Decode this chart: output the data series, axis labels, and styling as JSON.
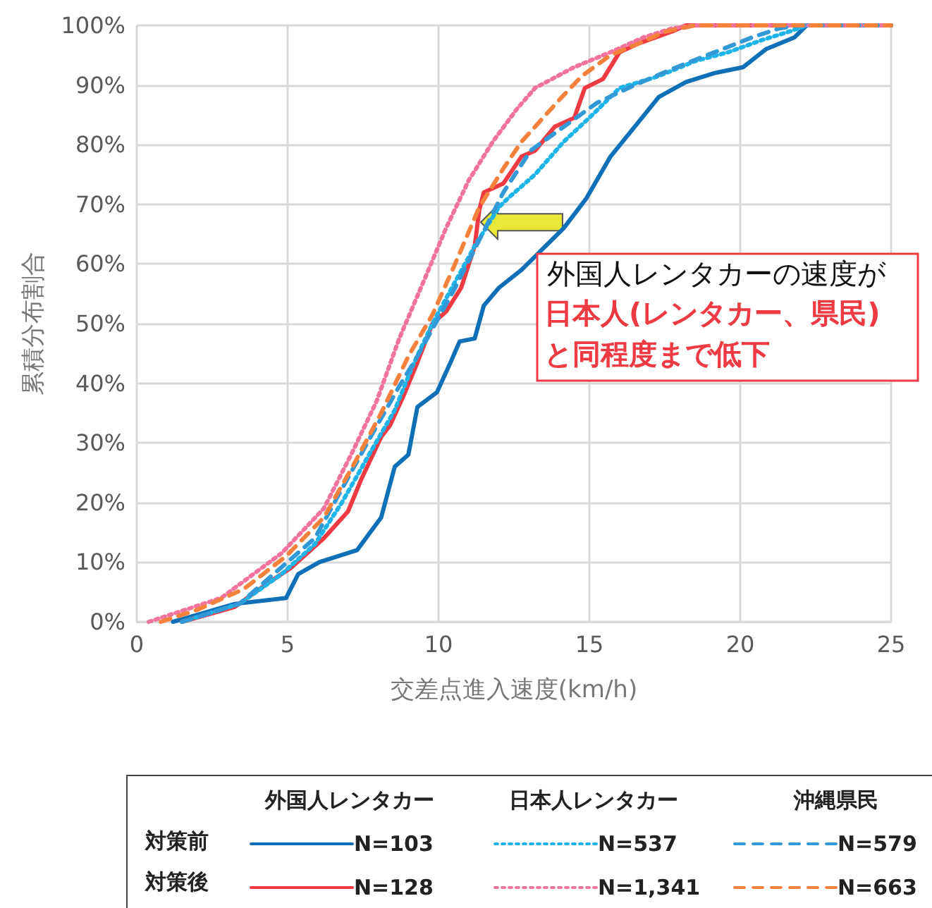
{
  "chart_data": {
    "type": "line",
    "xlabel": "交差点進入速度(km/h)",
    "ylabel": "累積分布割合",
    "xlim": [
      0,
      25
    ],
    "xticks": [
      0,
      5,
      10,
      15,
      20,
      25
    ],
    "ylim": [
      0,
      100
    ],
    "yticks": [
      {
        "value": 0,
        "label": "0%"
      },
      {
        "value": 10,
        "label": "10%"
      },
      {
        "value": 20,
        "label": "20%"
      },
      {
        "value": 30,
        "label": "30%"
      },
      {
        "value": 40,
        "label": "40%"
      },
      {
        "value": 50,
        "label": "50%"
      },
      {
        "value": 60,
        "label": "60%"
      },
      {
        "value": 70,
        "label": "70%"
      },
      {
        "value": 80,
        "label": "80%"
      },
      {
        "value": 90,
        "label": "90%"
      },
      {
        "value": 100,
        "label": "100%"
      }
    ],
    "grid": true,
    "legend": "bottom",
    "marker": "none",
    "annotations": [
      {
        "text": "外国人レンタカーの速度が",
        "x": 11.4,
        "y": 67
      },
      "日本人(レンタカー、県民)",
      "と同程度まで低下",
      "外国人レンタカー",
      "日本人レンタカー",
      "沖縄県民",
      "対策前",
      "対策後"
    ],
    "series": [
      {
        "name": "N=103",
        "color": "#0f70b7",
        "line_style": "solid",
        "x": [
          1.2,
          3.25,
          4.95,
          5.35,
          6.05,
          7.3,
          8.1,
          8.55,
          9.0,
          9.3,
          9.95,
          10.4,
          10.7,
          11.2,
          11.5,
          12.0,
          12.75,
          14.15,
          14.9,
          15.7,
          16.5,
          17.3,
          18.2,
          19.15,
          20.1,
          20.85,
          21.8,
          22.2,
          25
        ],
        "values": [
          0,
          3,
          4,
          8,
          10,
          12,
          17.5,
          26,
          28,
          36,
          38.5,
          43.5,
          47,
          47.5,
          53,
          56,
          59,
          66,
          71,
          78,
          83,
          88,
          90.5,
          92,
          93,
          96,
          98,
          100,
          100
        ]
      },
      {
        "name": "N=128",
        "color": "#ee3a43",
        "line_style": "solid",
        "x": [
          1.5,
          3.25,
          4.35,
          5.1,
          6.2,
          7.0,
          7.45,
          8.1,
          8.4,
          8.85,
          9.3,
          9.8,
          10.25,
          10.75,
          11.2,
          11.35,
          11.5,
          12.15,
          12.75,
          13.2,
          13.85,
          14.5,
          14.85,
          15.45,
          16.0,
          16.65,
          17.75,
          18.2,
          25
        ],
        "values": [
          0,
          2.5,
          6.5,
          9,
          14,
          18.5,
          24,
          31,
          33,
          38,
          43.5,
          50,
          52,
          56,
          63,
          69,
          72,
          73.5,
          78,
          79,
          83,
          84.5,
          89.5,
          91,
          95.5,
          97,
          99,
          100,
          100
        ]
      },
      {
        "name": "N=537",
        "color": "#1fb4e8",
        "line_style": "dotted",
        "x": [
          1.5,
          3.4,
          4.8,
          5.9,
          6.8,
          7.75,
          8.55,
          9.15,
          9.8,
          10.55,
          11.2,
          12.0,
          12.3,
          13.2,
          14.15,
          15.1,
          16.0,
          17.3,
          18.5,
          19.6,
          20.7,
          21.65,
          22.2,
          25
        ],
        "values": [
          0,
          3,
          8,
          13,
          20,
          28.5,
          35.5,
          43,
          50,
          57,
          63,
          69.5,
          71,
          75,
          80.5,
          85,
          89.5,
          91.5,
          94,
          95.5,
          97.5,
          99,
          100,
          100
        ]
      },
      {
        "name": "N=1,341",
        "color": "#f0739e",
        "line_style": "dotted",
        "x": [
          0.4,
          2.8,
          4.8,
          6.2,
          7.15,
          7.95,
          8.7,
          9.5,
          10.25,
          11.0,
          11.8,
          12.6,
          13.2,
          14.5,
          15.7,
          16.8,
          17.75,
          18.5,
          25
        ],
        "values": [
          0,
          4,
          11.5,
          19,
          28.5,
          37,
          47.5,
          57,
          66,
          74,
          80.5,
          86,
          89.5,
          93,
          95.5,
          98,
          99.5,
          100,
          100
        ]
      },
      {
        "name": "N=579",
        "color": "#3399d6",
        "line_style": "dashed",
        "x": [
          1.5,
          3.4,
          5.9,
          7.15,
          7.75,
          8.7,
          9.3,
          9.95,
          10.55,
          11.35,
          12.15,
          13.05,
          14.15,
          15.25,
          16.5,
          17.9,
          19.15,
          20.4,
          21.3,
          22.0,
          25
        ],
        "values": [
          0,
          3,
          14,
          25.5,
          31,
          39.5,
          44.5,
          50.5,
          56,
          64,
          72,
          79,
          83,
          87,
          90,
          93,
          95.5,
          98,
          99.5,
          100,
          100
        ]
      },
      {
        "name": "N=663",
        "color": "#f4823c",
        "line_style": "dashed",
        "x": [
          0.8,
          2.0,
          3.55,
          4.95,
          6.2,
          7.15,
          8.1,
          9.0,
          9.8,
          10.55,
          11.35,
          12.15,
          12.75,
          13.2,
          14.0,
          14.75,
          15.7,
          16.65,
          17.55,
          18.5,
          25
        ],
        "values": [
          0,
          2,
          5.5,
          11,
          17.5,
          26,
          35,
          44.5,
          51.5,
          60,
          69.5,
          76,
          80.5,
          83,
          87.5,
          91.5,
          95,
          97,
          99,
          100,
          100
        ]
      }
    ]
  }
}
